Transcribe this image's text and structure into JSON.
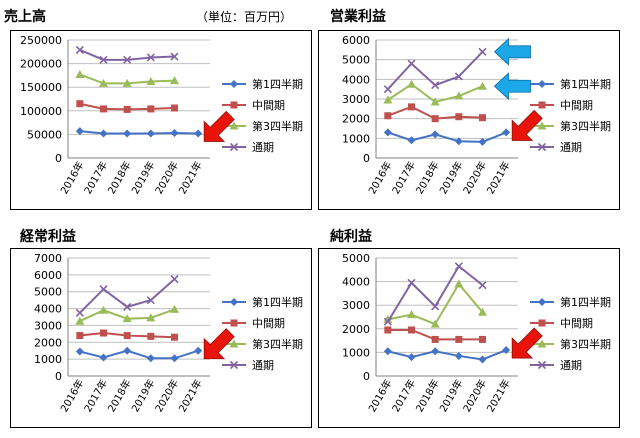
{
  "page": {
    "unit_note": "（単位：百万円）"
  },
  "colors": {
    "q1": "#4472C4",
    "half": "#C0504D",
    "q3": "#9BBB59",
    "full": "#8064A2",
    "grid": "#BFBFBF",
    "frame": "#000000",
    "red_arrow": "#E8140A",
    "blue_arrow": "#1CA7E8"
  },
  "icons": [
    "red-arrow-icon",
    "blue-arrow-icon"
  ],
  "chart_data": [
    {
      "id": "sales",
      "type": "line",
      "title": "売上高",
      "categories": [
        "2016年",
        "2017年",
        "2018年",
        "2019年",
        "2020年",
        "2021年"
      ],
      "ylim": [
        0,
        250000
      ],
      "yticks": [
        "0",
        "50000",
        "100000",
        "150000",
        "200000",
        "250000"
      ],
      "grid": true,
      "legend": "right",
      "series": [
        {
          "key": "q1",
          "name": "第1四半期",
          "marker": "diamond",
          "values": [
            57000,
            52000,
            52000,
            52000,
            53000,
            52000
          ]
        },
        {
          "key": "half",
          "name": "中間期",
          "marker": "square",
          "values": [
            115000,
            104000,
            103000,
            104000,
            106000,
            null
          ]
        },
        {
          "key": "q3",
          "name": "第3四半期",
          "marker": "triangle",
          "values": [
            177000,
            158000,
            158000,
            162000,
            164000,
            null
          ]
        },
        {
          "key": "full",
          "name": "通期",
          "marker": "x",
          "values": [
            229000,
            208000,
            208000,
            213000,
            215000,
            null
          ]
        }
      ],
      "annotations": {
        "red_arrows": 1,
        "blue_arrows": 0
      }
    },
    {
      "id": "op-income",
      "type": "line",
      "title": "営業利益",
      "categories": [
        "2016年",
        "2017年",
        "2018年",
        "2019年",
        "2020年",
        "2021年"
      ],
      "ylim": [
        0,
        6000
      ],
      "yticks": [
        "0",
        "1000",
        "2000",
        "3000",
        "4000",
        "5000",
        "6000"
      ],
      "grid": true,
      "legend": "right",
      "series": [
        {
          "key": "q1",
          "name": "第1四半期",
          "marker": "diamond",
          "values": [
            1300,
            900,
            1200,
            850,
            820,
            1300
          ]
        },
        {
          "key": "half",
          "name": "中間期",
          "marker": "square",
          "values": [
            2150,
            2600,
            2000,
            2100,
            2050,
            null
          ]
        },
        {
          "key": "q3",
          "name": "第3四半期",
          "marker": "triangle",
          "values": [
            2950,
            3750,
            2850,
            3150,
            3650,
            null
          ]
        },
        {
          "key": "full",
          "name": "通期",
          "marker": "x",
          "values": [
            3500,
            4800,
            3700,
            4150,
            5400,
            null
          ]
        }
      ],
      "annotations": {
        "red_arrows": 1,
        "blue_arrows": 2
      }
    },
    {
      "id": "ordinary-income",
      "type": "line",
      "title": "経常利益",
      "categories": [
        "2016年",
        "2017年",
        "2018年",
        "2019年",
        "2020年",
        "2021年"
      ],
      "ylim": [
        0,
        7000
      ],
      "yticks": [
        "0",
        "1000",
        "2000",
        "3000",
        "4000",
        "5000",
        "6000",
        "7000"
      ],
      "grid": true,
      "legend": "right",
      "series": [
        {
          "key": "q1",
          "name": "第1四半期",
          "marker": "diamond",
          "values": [
            1450,
            1100,
            1500,
            1050,
            1050,
            1500
          ]
        },
        {
          "key": "half",
          "name": "中間期",
          "marker": "square",
          "values": [
            2400,
            2550,
            2400,
            2350,
            2300,
            null
          ]
        },
        {
          "key": "q3",
          "name": "第3四半期",
          "marker": "triangle",
          "values": [
            3250,
            3900,
            3400,
            3450,
            3950,
            null
          ]
        },
        {
          "key": "full",
          "name": "通期",
          "marker": "x",
          "values": [
            3750,
            5150,
            4100,
            4500,
            5750,
            null
          ]
        }
      ],
      "annotations": {
        "red_arrows": 1,
        "blue_arrows": 0
      }
    },
    {
      "id": "net-income",
      "type": "line",
      "title": "純利益",
      "categories": [
        "2016年",
        "2017年",
        "2018年",
        "2019年",
        "2020年",
        "2021年"
      ],
      "ylim": [
        0,
        5000
      ],
      "yticks": [
        "0",
        "1000",
        "2000",
        "3000",
        "4000",
        "5000"
      ],
      "grid": true,
      "legend": "right",
      "series": [
        {
          "key": "q1",
          "name": "第1四半期",
          "marker": "diamond",
          "values": [
            1050,
            800,
            1050,
            850,
            700,
            1100
          ]
        },
        {
          "key": "half",
          "name": "中間期",
          "marker": "square",
          "values": [
            1950,
            1950,
            1550,
            1550,
            1550,
            null
          ]
        },
        {
          "key": "q3",
          "name": "第3四半期",
          "marker": "triangle",
          "values": [
            2400,
            2600,
            2200,
            3900,
            2700,
            null
          ]
        },
        {
          "key": "full",
          "name": "通期",
          "marker": "x",
          "values": [
            2300,
            3950,
            2950,
            4650,
            3850,
            null
          ]
        }
      ],
      "annotations": {
        "red_arrows": 1,
        "blue_arrows": 0
      }
    }
  ]
}
